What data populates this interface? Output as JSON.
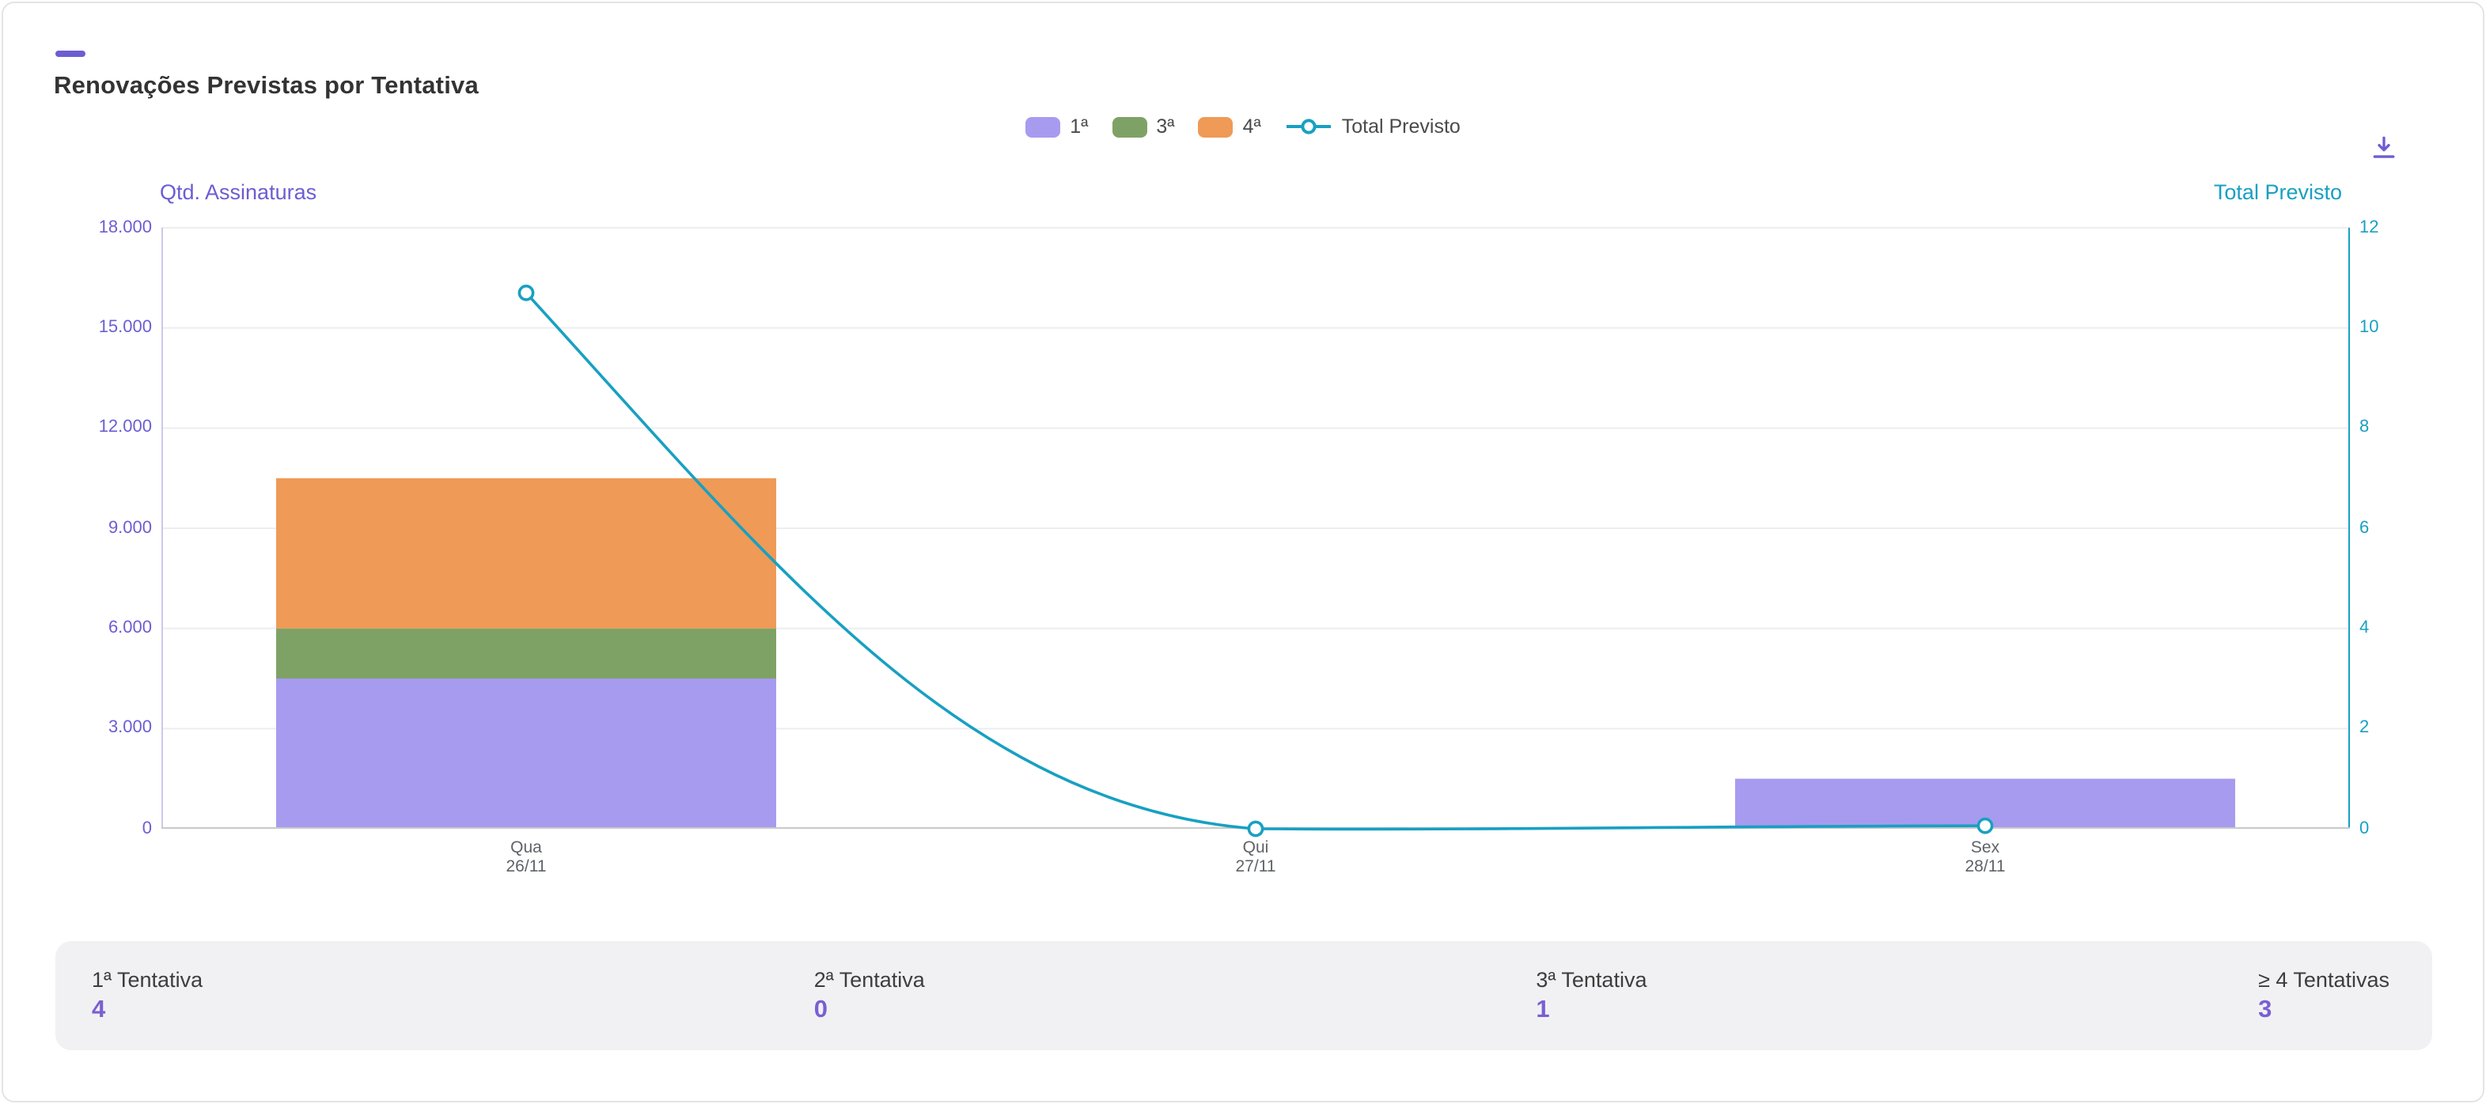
{
  "header": {
    "title": "Renovações Previstas por Tentativa"
  },
  "toolbar": {
    "download_icon": "download"
  },
  "legend": {
    "items": [
      {
        "label": "1ª",
        "type": "swatch",
        "color": "#a79bf0"
      },
      {
        "label": "3ª",
        "type": "swatch",
        "color": "#7ea266"
      },
      {
        "label": "4ª",
        "type": "swatch",
        "color": "#ef9a57"
      },
      {
        "label": "Total Previsto",
        "type": "line",
        "color": "#18a0c2"
      }
    ]
  },
  "chart_data": {
    "type": "bar",
    "overlay": "line",
    "subtype": "stacked-bars-with-line-overlay",
    "grid": "horizontal",
    "legend_position": "top-center",
    "categories": [
      {
        "day": "Qua",
        "date": "26/11"
      },
      {
        "day": "Qui",
        "date": "27/11"
      },
      {
        "day": "Sex",
        "date": "28/11"
      }
    ],
    "bar_series": [
      {
        "name": "1ª",
        "color": "#a79bf0",
        "axis": "left",
        "values": [
          4500,
          0,
          1500
        ]
      },
      {
        "name": "3ª",
        "color": "#7ea266",
        "axis": "left",
        "values": [
          1500,
          0,
          0
        ]
      },
      {
        "name": "4ª",
        "color": "#ef9a57",
        "axis": "left",
        "values": [
          4500,
          0,
          0
        ]
      }
    ],
    "line_series": {
      "name": "Total Previsto",
      "color": "#18a0c2",
      "axis": "right",
      "values": [
        10.7,
        0,
        0.06
      ]
    },
    "left_axis": {
      "title": "Qtd. Assinaturas",
      "color": "#6c5dd3",
      "min": 0,
      "max": 18000,
      "ticks": [
        {
          "v": 18000,
          "label": "18.000"
        },
        {
          "v": 15000,
          "label": "15.000"
        },
        {
          "v": 12000,
          "label": "12.000"
        },
        {
          "v": 9000,
          "label": "9.000"
        },
        {
          "v": 6000,
          "label": "6.000"
        },
        {
          "v": 3000,
          "label": "3.000"
        },
        {
          "v": 0,
          "label": "0"
        }
      ]
    },
    "right_axis": {
      "title": "Total Previsto",
      "color": "#18a0c2",
      "min": 0,
      "max": 12,
      "ticks": [
        {
          "v": 12,
          "label": "12"
        },
        {
          "v": 10,
          "label": "10"
        },
        {
          "v": 8,
          "label": "8"
        },
        {
          "v": 6,
          "label": "6"
        },
        {
          "v": 4,
          "label": "4"
        },
        {
          "v": 2,
          "label": "2"
        },
        {
          "v": 0,
          "label": "0"
        }
      ]
    }
  },
  "summary": {
    "cards": [
      {
        "label": "1ª Tentativa",
        "value": "4"
      },
      {
        "label": "2ª Tentativa",
        "value": "0"
      },
      {
        "label": "3ª Tentativa",
        "value": "1"
      },
      {
        "label": "≥ 4 Tentativas",
        "value": "3"
      }
    ]
  }
}
